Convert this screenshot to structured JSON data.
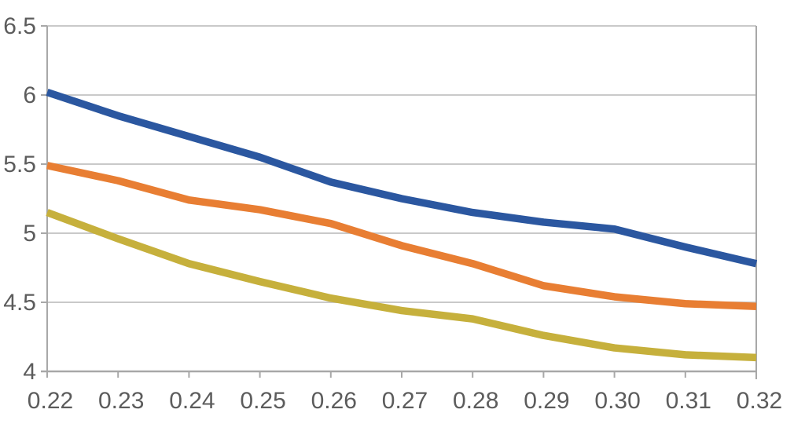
{
  "chart_data": {
    "type": "line",
    "title": "",
    "xlabel": "",
    "ylabel": "",
    "legend": "none",
    "grid": "horizontal",
    "x_tick_labels": [
      "0.22",
      "0.23",
      "0.24",
      "0.25",
      "0.26",
      "0.27",
      "0.28",
      "0.29",
      "0.30",
      "0.31",
      "0.32"
    ],
    "x": [
      0.22,
      0.23,
      0.24,
      0.25,
      0.26,
      0.27,
      0.28,
      0.29,
      0.3,
      0.31,
      0.32
    ],
    "y_tick_labels": [
      "6.5",
      "6",
      "5.5",
      "5",
      "4.5",
      "4"
    ],
    "y_ticks": [
      6.5,
      6.0,
      5.5,
      5.0,
      4.5,
      4.0
    ],
    "ylim": [
      4.0,
      6.5
    ],
    "series": [
      {
        "name": "blue-line",
        "color": "#2B57A0",
        "values": [
          6.02,
          5.85,
          5.7,
          5.55,
          5.37,
          5.25,
          5.15,
          5.08,
          5.03,
          4.9,
          4.78
        ]
      },
      {
        "name": "orange-line",
        "color": "#E87E33",
        "values": [
          5.49,
          5.38,
          5.24,
          5.17,
          5.07,
          4.91,
          4.78,
          4.62,
          4.54,
          4.49,
          4.47
        ]
      },
      {
        "name": "yellow-line",
        "color": "#C6B03C",
        "values": [
          5.15,
          4.96,
          4.78,
          4.65,
          4.53,
          4.44,
          4.38,
          4.26,
          4.17,
          4.12,
          4.1
        ]
      }
    ],
    "colors": {
      "gridline": "#C9C9C9",
      "axis": "#A8A8A8",
      "tick_label": "#5C5C5C",
      "background": "#FFFFFF"
    }
  }
}
